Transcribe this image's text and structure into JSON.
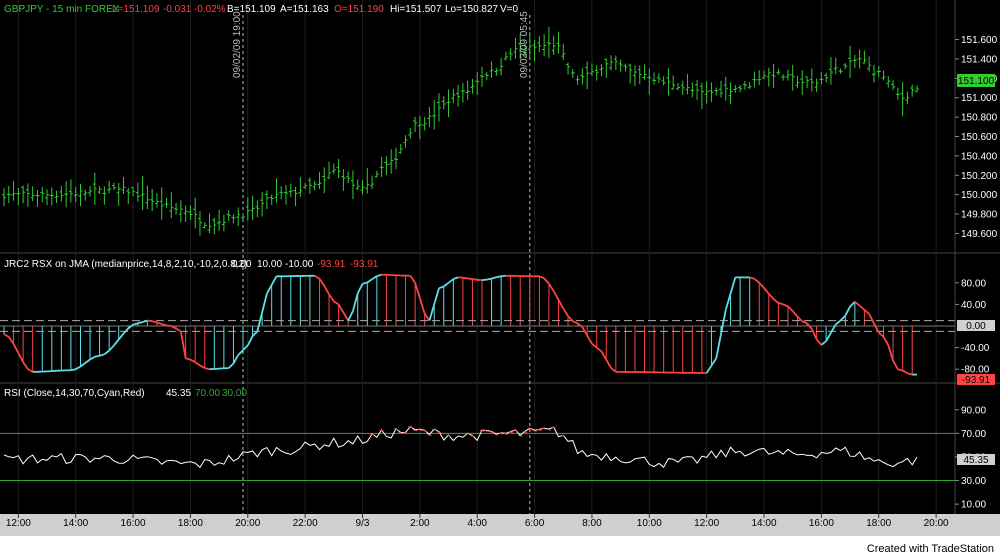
{
  "footer": {
    "credit": "Created with TradeStation"
  },
  "chart_data": [
    {
      "type": "ohlc",
      "panel": "price",
      "header": {
        "symbol": "GBPJPY - 15 min  FOREX",
        "last": "L=151.109",
        "change": "-0.031",
        "change_pct": "-0.02%",
        "bid": "B=151.109",
        "ask": "A=151.163",
        "open": "O=151.190",
        "high": "Hi=151.507",
        "low": "Lo=150.827",
        "volume": "V=0"
      },
      "colors": {
        "bars": "#33cc33",
        "header": "#33cc33",
        "header_neg": "#ff4040",
        "header_text": "#ffffff"
      },
      "y_ticks": [
        "151.600",
        "151.400",
        "151.200",
        "151.000",
        "150.800",
        "150.600",
        "150.400",
        "150.200",
        "150.000",
        "149.800",
        "149.600"
      ],
      "y_range": [
        149.45,
        151.75
      ],
      "last_value_label": "151.100",
      "session_labels": [
        "09/02/09 19:00",
        "09/03/09 05:45"
      ],
      "close_anchors": [
        [
          0,
          150.0
        ],
        [
          10,
          150.0
        ],
        [
          24,
          150.05
        ],
        [
          37,
          149.85
        ],
        [
          43,
          149.7
        ],
        [
          50,
          149.8
        ],
        [
          58,
          150.0
        ],
        [
          66,
          150.1
        ],
        [
          69,
          150.25
        ],
        [
          75,
          150.05
        ],
        [
          80,
          150.3
        ],
        [
          87,
          150.75
        ],
        [
          96,
          151.05
        ],
        [
          101,
          151.25
        ],
        [
          108,
          151.5
        ],
        [
          115,
          151.55
        ],
        [
          120,
          151.2
        ],
        [
          127,
          151.35
        ],
        [
          133,
          151.25
        ],
        [
          139,
          151.15
        ],
        [
          146,
          151.05
        ],
        [
          154,
          151.1
        ],
        [
          160,
          151.25
        ],
        [
          169,
          151.15
        ],
        [
          175,
          151.3
        ],
        [
          179,
          151.4
        ],
        [
          183,
          151.25
        ],
        [
          188,
          151.0
        ],
        [
          191,
          151.1
        ]
      ]
    },
    {
      "type": "histogram",
      "panel": "rsx",
      "label": "JRC2 RSX on JMA (medianprice,14,8,2,10,-10,2,0.8,2)",
      "values_text": [
        "0.00",
        "10.00",
        "-10.00",
        "-93.91",
        "-93.91"
      ],
      "colors": {
        "rising": "#5ce1e6",
        "falling": "#ff4444",
        "label": "#ffffff",
        "neg": "#ff4040"
      },
      "y_ticks": [
        "80.00",
        "40.00",
        "0.00",
        "-40.00",
        "-80.00"
      ],
      "y_range": [
        -100,
        100
      ],
      "level_lines": [
        10,
        -10
      ],
      "last_value_label": "-93.91",
      "anchors": [
        [
          0,
          -15
        ],
        [
          6,
          -85
        ],
        [
          14,
          -82
        ],
        [
          20,
          -55
        ],
        [
          28,
          5
        ],
        [
          30,
          10
        ],
        [
          35,
          0
        ],
        [
          37,
          -10
        ],
        [
          38,
          -60
        ],
        [
          43,
          -80
        ],
        [
          47,
          -78
        ],
        [
          50,
          -45
        ],
        [
          53,
          -10
        ],
        [
          55,
          60
        ],
        [
          57,
          92
        ],
        [
          65,
          93
        ],
        [
          70,
          40
        ],
        [
          72,
          10
        ],
        [
          75,
          78
        ],
        [
          79,
          95
        ],
        [
          85,
          93
        ],
        [
          89,
          10
        ],
        [
          91,
          70
        ],
        [
          95,
          90
        ],
        [
          100,
          85
        ],
        [
          105,
          93
        ],
        [
          112,
          92
        ],
        [
          120,
          5
        ],
        [
          124,
          -40
        ],
        [
          128,
          -85
        ],
        [
          147,
          -87
        ],
        [
          149,
          -60
        ],
        [
          151,
          30
        ],
        [
          153,
          90
        ],
        [
          156,
          90
        ],
        [
          163,
          40
        ],
        [
          168,
          5
        ],
        [
          171,
          -35
        ],
        [
          175,
          10
        ],
        [
          178,
          45
        ],
        [
          180,
          30
        ],
        [
          184,
          -20
        ],
        [
          187,
          -80
        ],
        [
          190,
          -90
        ]
      ]
    },
    {
      "type": "line",
      "panel": "rsi",
      "label": "RSI (Close,14,30,70,Cyan,Red)",
      "values_text": [
        "45.35",
        "70.00",
        "30.00"
      ],
      "colors": {
        "line": "#ffffff",
        "overbought": "#ff4444",
        "levels": "#2ea82e",
        "value": "#ffffff",
        "level_text": "#2ea82e"
      },
      "y_ticks": [
        "90.00",
        "70.00",
        "50.00",
        "30.00",
        "10.00"
      ],
      "y_range": [
        5,
        100
      ],
      "levels": [
        70,
        30
      ],
      "last_value_label": "45.35",
      "anchors": [
        [
          0,
          48
        ],
        [
          20,
          49
        ],
        [
          40,
          44
        ],
        [
          58,
          56
        ],
        [
          70,
          62
        ],
        [
          85,
          72
        ],
        [
          95,
          68
        ],
        [
          108,
          70
        ],
        [
          115,
          72
        ],
        [
          122,
          52
        ],
        [
          140,
          45
        ],
        [
          155,
          55
        ],
        [
          165,
          52
        ],
        [
          175,
          55
        ],
        [
          185,
          45
        ],
        [
          191,
          47
        ]
      ]
    }
  ],
  "time_axis": {
    "labels": [
      {
        "text": "12:00",
        "bar": 2
      },
      {
        "text": "14:00",
        "bar": 10
      },
      {
        "text": "16:00",
        "bar": 18
      },
      {
        "text": "18:00",
        "bar": 26
      },
      {
        "text": "20:00",
        "bar": 34
      },
      {
        "text": "22:00",
        "bar": 42
      },
      {
        "text": "9/3",
        "bar": 50
      },
      {
        "text": "2:00",
        "bar": 58
      },
      {
        "text": "4:00",
        "bar": 66
      },
      {
        "text": "6:00",
        "bar": 74
      },
      {
        "text": "8:00",
        "bar": 82
      },
      {
        "text": "10:00",
        "bar": 90
      },
      {
        "text": "12:00",
        "bar": 98
      },
      {
        "text": "14:00",
        "bar": 106
      },
      {
        "text": "16:00",
        "bar": 114
      },
      {
        "text": "18:00",
        "bar": 122
      },
      {
        "text": "20:00",
        "bar": 130
      }
    ]
  }
}
